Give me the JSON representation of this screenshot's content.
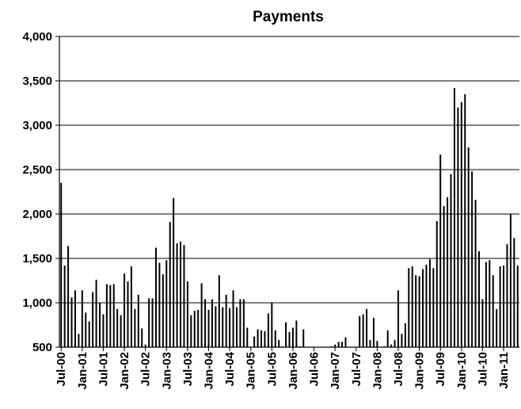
{
  "chart_data": {
    "type": "bar",
    "title": "Payments",
    "xlabel": "",
    "ylabel": "",
    "ylim": [
      500,
      4000
    ],
    "yticks": [
      500,
      1000,
      1500,
      2000,
      2500,
      3000,
      3500,
      4000
    ],
    "ytick_labels": [
      "500",
      "1,000",
      "1,500",
      "2,000",
      "2,500",
      "3,000",
      "3,500",
      "4,000"
    ],
    "grid": true,
    "legend": "none",
    "bar_color": "#000000",
    "start_month": "Jul-00",
    "x_tick_labels": [
      "Jul-00",
      "Jan-01",
      "Jul-01",
      "Jan-02",
      "Jul-02",
      "Jan-03",
      "Jul-03",
      "Jan-04",
      "Jul-04",
      "Jan-05",
      "Jul-05",
      "Jan-06",
      "Jul-06",
      "Jan-07",
      "Jul-07",
      "Jan-08",
      "Jul-08",
      "Jan-09",
      "Jul-09",
      "Jan-10",
      "Jul-10",
      "Jan-11"
    ],
    "x_tick_every": 6,
    "values": [
      2350,
      1420,
      1640,
      1060,
      1140,
      650,
      1140,
      890,
      790,
      1120,
      1260,
      1000,
      870,
      1210,
      1200,
      1210,
      930,
      860,
      1330,
      1240,
      1410,
      930,
      1090,
      710,
      530,
      1050,
      1050,
      1620,
      1450,
      1320,
      1480,
      1910,
      2180,
      1670,
      1690,
      1650,
      1240,
      860,
      910,
      920,
      1220,
      1040,
      920,
      1040,
      960,
      1310,
      950,
      1090,
      940,
      1140,
      950,
      1040,
      1040,
      720,
      500,
      620,
      700,
      690,
      680,
      880,
      1000,
      690,
      580,
      510,
      780,
      670,
      720,
      800,
      510,
      700,
      500,
      500,
      500,
      500,
      500,
      500,
      500,
      510,
      530,
      560,
      560,
      610,
      500,
      500,
      500,
      850,
      870,
      930,
      580,
      830,
      570,
      500,
      510,
      690,
      530,
      580,
      1140,
      650,
      770,
      1390,
      1410,
      1310,
      1300,
      1380,
      1430,
      1490,
      1390,
      1920,
      2670,
      2090,
      2190,
      2450,
      3420,
      3200,
      3260,
      3350,
      2750,
      2480,
      2160,
      1580,
      1040,
      1460,
      1480,
      1310,
      930,
      1410,
      1420,
      1660,
      2000,
      1730,
      1420
    ]
  }
}
